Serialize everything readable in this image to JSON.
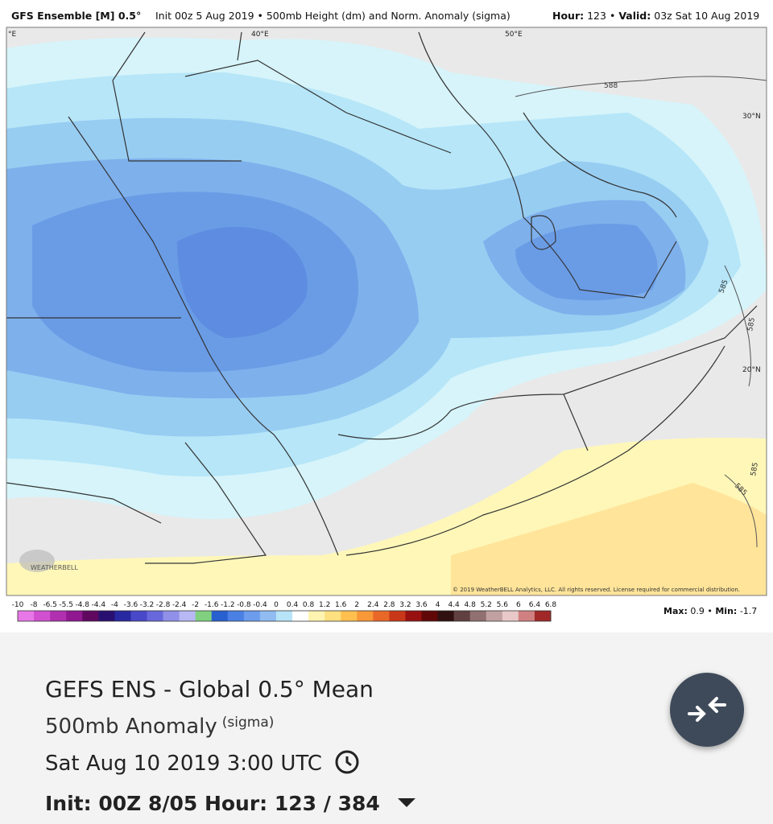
{
  "map": {
    "title": "GFS Ensemble [M] 0.5°",
    "subtitle": "Init 00z 5 Aug 2019 • 500mb Height (dm) and Norm. Anomaly (sigma)",
    "valid": {
      "hour_label": "Hour:",
      "hour_value": "123 •",
      "valid_label": "Valid:",
      "valid_value": "03z Sat 10 Aug 2019"
    },
    "lon_labels": [
      "°E",
      "40°E",
      "50°E"
    ],
    "lat_labels": [
      "30°N",
      "20°N"
    ],
    "contour_labels": [
      "588",
      "585",
      "585",
      "585",
      "585"
    ],
    "watermark": "WEATHERBELL",
    "copyright": "© 2019 WeatherBELL Analytics, LLC. All rights reserved. License required for commercial distribution.",
    "colorbar": {
      "labels": [
        "-10",
        "-8",
        "-6.5",
        "-5.5",
        "-4.8",
        "-4.4",
        "-4",
        "-3.6",
        "-3.2",
        "-2.8",
        "-2.4",
        "-2",
        "-1.6",
        "-1.2",
        "-0.8",
        "-0.4",
        "0",
        "0.4",
        "0.8",
        "1.2",
        "1.6",
        "2",
        "2.4",
        "2.8",
        "3.2",
        "3.6",
        "4",
        "4.4",
        "4.8",
        "5.2",
        "5.6",
        "6",
        "6.4",
        "6.8"
      ],
      "colors": [
        "#e878e8",
        "#d050d0",
        "#b030b0",
        "#901890",
        "#600860",
        "#281070",
        "#2828a0",
        "#4848c8",
        "#6868dc",
        "#9090e8",
        "#b8b8f4",
        "#80d080",
        "#2860d0",
        "#4a80e4",
        "#6c9cec",
        "#90bcf2",
        "#b8e4f8",
        "#ffffff",
        "#fff4b0",
        "#ffe080",
        "#ffc050",
        "#f89838",
        "#e86828",
        "#c83818",
        "#981010",
        "#600808",
        "#301010",
        "#604040",
        "#907070",
        "#c0a0a0",
        "#e8c8c8",
        "#d08080",
        "#a02828"
      ]
    },
    "stats": {
      "max_label": "Max:",
      "max_value": "0.9 •",
      "min_label": "Min:",
      "min_value": "-1.7"
    }
  },
  "panel": {
    "model": "GEFS ENS - Global 0.5° Mean",
    "product": "500mb Anomaly",
    "unit": "(sigma)",
    "valid": "Sat Aug 10 2019 3:00 UTC",
    "init": "Init: 00Z 8/05  Hour: 123 / 384"
  }
}
